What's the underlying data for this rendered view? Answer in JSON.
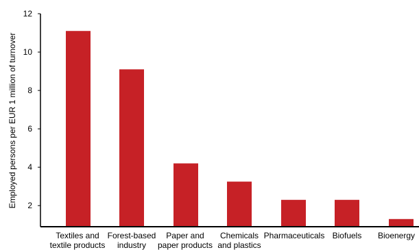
{
  "chart_data": {
    "type": "bar",
    "ylabel": "Employed persons per EUR 1 million of turnover",
    "xlabel": "",
    "ylim": [
      0.9,
      12
    ],
    "yticks": [
      2,
      4,
      6,
      8,
      10,
      12
    ],
    "grid": false,
    "categories": [
      [
        "Textiles and",
        "textile products"
      ],
      [
        "Forest-based",
        "industry"
      ],
      [
        "Paper and",
        "paper products"
      ],
      [
        "Chemicals",
        "and plastics"
      ],
      [
        "Pharmaceuticals"
      ],
      [
        "Biofuels"
      ],
      [
        "Bioenergy"
      ]
    ],
    "values": [
      11.1,
      9.1,
      4.2,
      3.25,
      2.3,
      2.3,
      1.3
    ],
    "bar_color": "#c62126"
  }
}
